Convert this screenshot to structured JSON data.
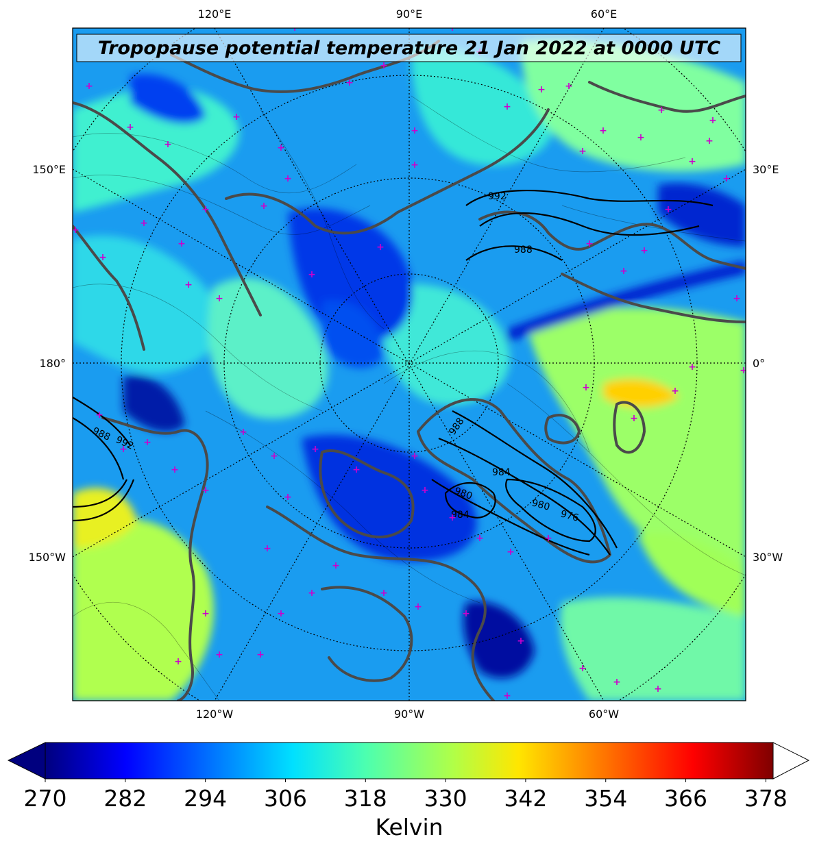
{
  "title": "Tropopause potential temperature 21 Jan 2022 at 0000 UTC",
  "lon_labels_top": [
    "120°E",
    "90°E",
    "60°E"
  ],
  "lon_labels_bottom": [
    "120°W",
    "90°W",
    "60°W"
  ],
  "lat_labels_left": [
    "150°E",
    "180°",
    "150°W"
  ],
  "lat_labels_right": [
    "30°E",
    "0°",
    "30°W"
  ],
  "colorbar": {
    "label": "Kelvin",
    "ticks": [
      "270",
      "282",
      "294",
      "306",
      "318",
      "330",
      "342",
      "354",
      "366",
      "378"
    ],
    "colormap": "jet",
    "extend": "both"
  },
  "pressure_contour_labels": [
    "992",
    "988",
    "988",
    "992",
    "988",
    "984",
    "980",
    "984",
    "980",
    "976"
  ],
  "colors": {
    "coastline": "#4a4a4a",
    "marker": "#cc00cc",
    "contour": "#000000"
  }
}
